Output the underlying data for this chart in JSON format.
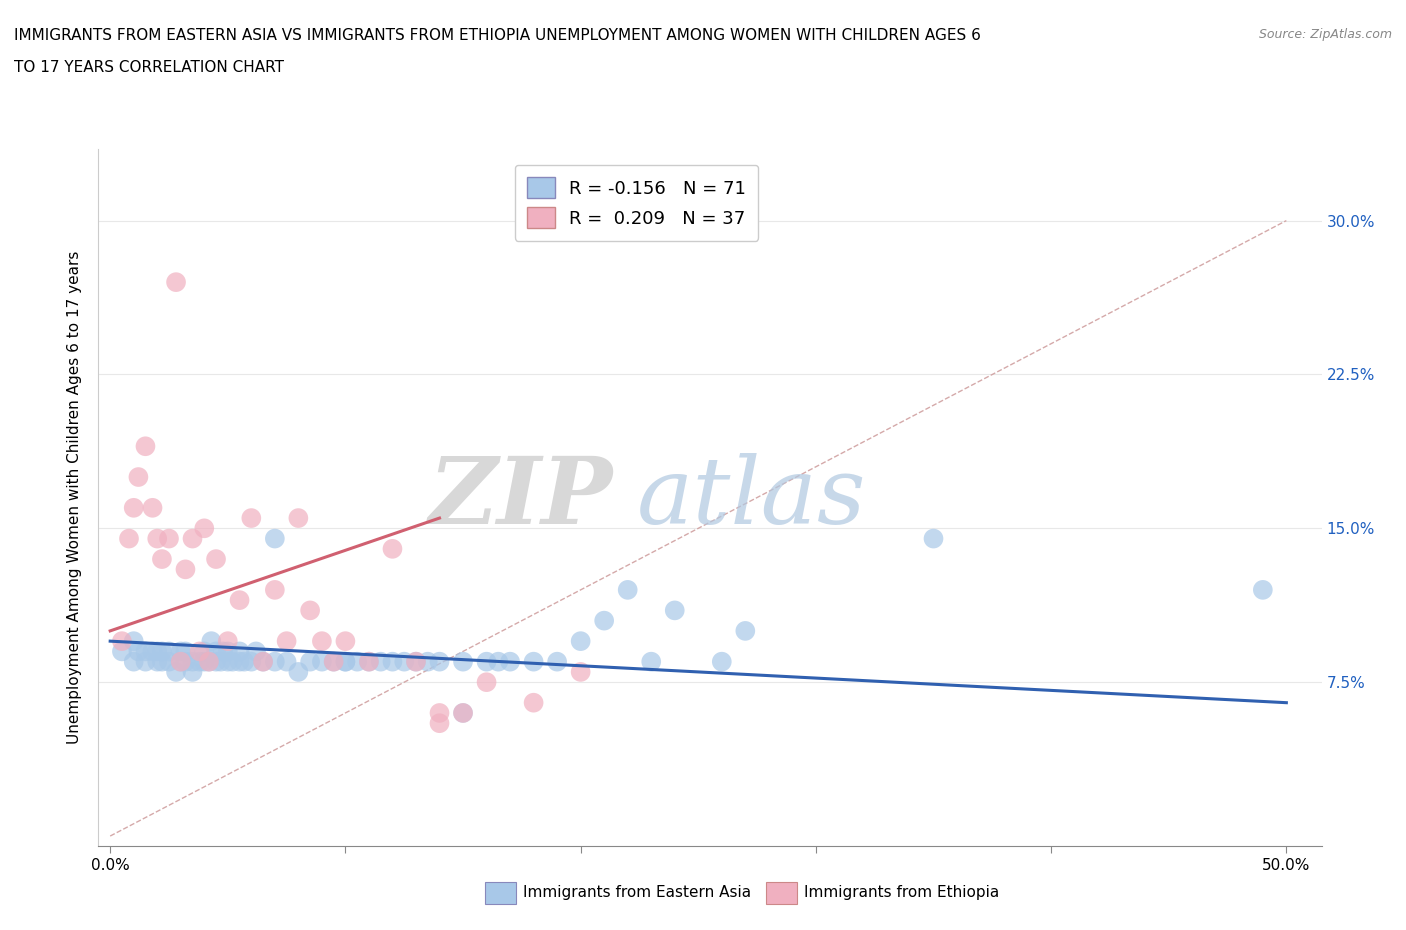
{
  "title_line1": "IMMIGRANTS FROM EASTERN ASIA VS IMMIGRANTS FROM ETHIOPIA UNEMPLOYMENT AMONG WOMEN WITH CHILDREN AGES 6",
  "title_line2": "TO 17 YEARS CORRELATION CHART",
  "source": "Source: ZipAtlas.com",
  "xlabel_blue": "Immigrants from Eastern Asia",
  "xlabel_pink": "Immigrants from Ethiopia",
  "ylabel": "Unemployment Among Women with Children Ages 6 to 17 years",
  "xlim": [
    -0.005,
    0.515
  ],
  "ylim": [
    -0.005,
    0.335
  ],
  "xticks": [
    0.0,
    0.1,
    0.2,
    0.3,
    0.4,
    0.5
  ],
  "xticklabels_ends": [
    "0.0%",
    "50.0%"
  ],
  "yticks": [
    0.075,
    0.15,
    0.225,
    0.3
  ],
  "yticklabels": [
    "7.5%",
    "15.0%",
    "22.5%",
    "30.0%"
  ],
  "legend_blue_R": "R = -0.156",
  "legend_blue_N": "N = 71",
  "legend_pink_R": "R =  0.209",
  "legend_pink_N": "N = 37",
  "blue_color": "#a8c8e8",
  "pink_color": "#f0b0c0",
  "blue_line_color": "#3060b0",
  "pink_line_color": "#d06070",
  "ref_line_color": "#d0a0a0",
  "grid_color": "#e8e8e8",
  "watermark_zip": "ZIP",
  "watermark_atlas": "atlas",
  "blue_scatter_x": [
    0.005,
    0.01,
    0.01,
    0.012,
    0.015,
    0.015,
    0.018,
    0.02,
    0.02,
    0.022,
    0.022,
    0.025,
    0.025,
    0.028,
    0.03,
    0.03,
    0.032,
    0.032,
    0.035,
    0.035,
    0.038,
    0.04,
    0.04,
    0.042,
    0.043,
    0.045,
    0.045,
    0.047,
    0.048,
    0.05,
    0.05,
    0.052,
    0.055,
    0.055,
    0.057,
    0.06,
    0.062,
    0.065,
    0.07,
    0.07,
    0.075,
    0.08,
    0.085,
    0.09,
    0.095,
    0.1,
    0.1,
    0.105,
    0.11,
    0.115,
    0.12,
    0.125,
    0.13,
    0.135,
    0.14,
    0.15,
    0.15,
    0.16,
    0.165,
    0.17,
    0.18,
    0.19,
    0.2,
    0.21,
    0.22,
    0.23,
    0.24,
    0.26,
    0.27,
    0.35,
    0.49
  ],
  "blue_scatter_y": [
    0.09,
    0.085,
    0.095,
    0.09,
    0.085,
    0.09,
    0.09,
    0.085,
    0.09,
    0.085,
    0.09,
    0.085,
    0.09,
    0.08,
    0.085,
    0.09,
    0.085,
    0.09,
    0.08,
    0.085,
    0.085,
    0.085,
    0.09,
    0.085,
    0.095,
    0.085,
    0.09,
    0.085,
    0.09,
    0.085,
    0.09,
    0.085,
    0.085,
    0.09,
    0.085,
    0.085,
    0.09,
    0.085,
    0.085,
    0.145,
    0.085,
    0.08,
    0.085,
    0.085,
    0.085,
    0.085,
    0.085,
    0.085,
    0.085,
    0.085,
    0.085,
    0.085,
    0.085,
    0.085,
    0.085,
    0.085,
    0.06,
    0.085,
    0.085,
    0.085,
    0.085,
    0.085,
    0.095,
    0.105,
    0.12,
    0.085,
    0.11,
    0.085,
    0.1,
    0.145,
    0.12
  ],
  "pink_scatter_x": [
    0.005,
    0.008,
    0.01,
    0.012,
    0.015,
    0.018,
    0.02,
    0.022,
    0.025,
    0.028,
    0.03,
    0.032,
    0.035,
    0.038,
    0.04,
    0.042,
    0.045,
    0.05,
    0.055,
    0.06,
    0.065,
    0.07,
    0.075,
    0.08,
    0.085,
    0.09,
    0.095,
    0.1,
    0.11,
    0.12,
    0.13,
    0.14,
    0.15,
    0.16,
    0.18,
    0.2,
    0.14
  ],
  "pink_scatter_y": [
    0.095,
    0.145,
    0.16,
    0.175,
    0.19,
    0.16,
    0.145,
    0.135,
    0.145,
    0.27,
    0.085,
    0.13,
    0.145,
    0.09,
    0.15,
    0.085,
    0.135,
    0.095,
    0.115,
    0.155,
    0.085,
    0.12,
    0.095,
    0.155,
    0.11,
    0.095,
    0.085,
    0.095,
    0.085,
    0.14,
    0.085,
    0.06,
    0.06,
    0.075,
    0.065,
    0.08,
    0.055
  ],
  "blue_trend_x": [
    0.0,
    0.5
  ],
  "blue_trend_y": [
    0.095,
    0.065
  ],
  "pink_trend_x": [
    0.0,
    0.14
  ],
  "pink_trend_y": [
    0.1,
    0.155
  ],
  "ref_line_x": [
    0.0,
    0.5
  ],
  "ref_line_y": [
    0.0,
    0.3
  ]
}
